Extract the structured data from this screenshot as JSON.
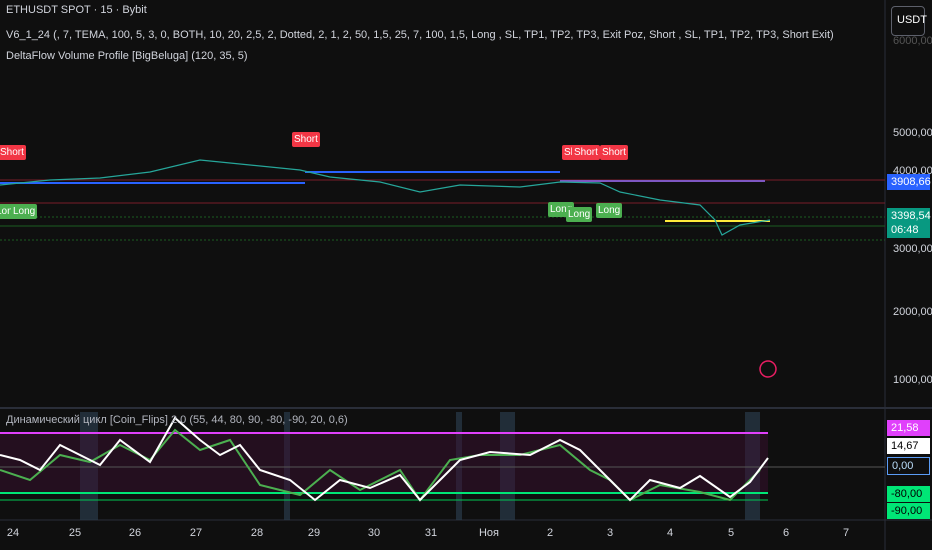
{
  "header": {
    "symbol": "ETHUSDT SPOT · 15 · Bybit",
    "indicator_1": "V6_1_24 (, 7, TEMA, 100, 5, 3, 0, BOTH, 10, 20, 2,5, 2, Dotted, 2, 1, 2, 50, 1,5, 25, 7, 100, 1,5, Long , SL, TP1, TP2, TP3,  Exit Poz, Short  ,  SL,  TP1, TP2, TP3, Short Exit)",
    "indicator_2": "DeltaFlow Volume Profile [BigBeluga] (120, 35, 5)",
    "currency_button": "USDT"
  },
  "price_axis": {
    "labels": [
      "6000,00",
      "5000,00",
      "4000,00",
      "3000,00",
      "2000,00",
      "1000,00"
    ],
    "tags": [
      "3908,66",
      "3398,54",
      "06:48"
    ]
  },
  "signals": {
    "short": [
      "Short",
      "Short",
      "Short",
      "Short",
      "Short"
    ],
    "long": [
      "Long",
      "Long",
      "Long",
      "Long",
      "Long"
    ]
  },
  "oscillator": {
    "title": "Динамический цикл [Coin_Flips] 2.0 (55, 44, 80, 90, -80, -90, 20, 0,6)",
    "tags": [
      "21,58",
      "14,67",
      "0,00",
      "-80,00",
      "-90,00"
    ]
  },
  "time_axis": [
    "24",
    "25",
    "26",
    "27",
    "28",
    "29",
    "30",
    "31",
    "Ноя",
    "2",
    "3",
    "4",
    "5",
    "6",
    "7"
  ]
}
